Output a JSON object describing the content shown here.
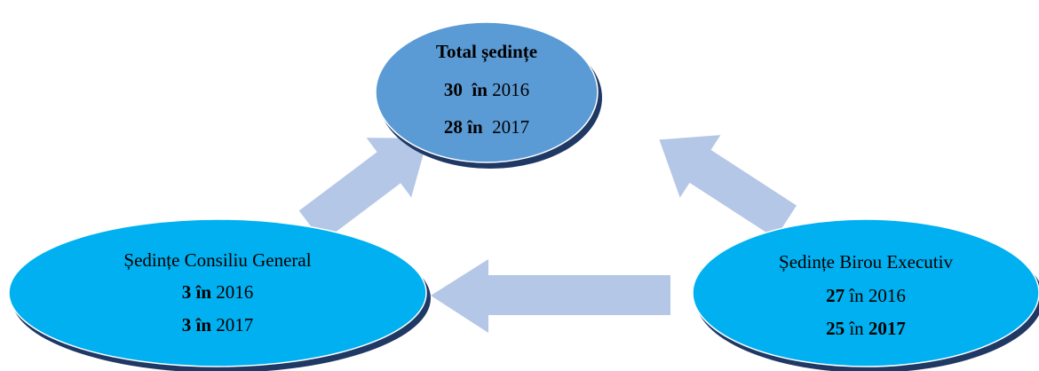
{
  "nodes": [
    {
      "lines": [
        [
          {
            "text": "Total ședințe",
            "bold": true
          }
        ],
        [
          {
            "text": "30  în",
            "bold": true
          },
          {
            "text": " 2016",
            "bold": false
          }
        ],
        [
          {
            "text": "28 în",
            "bold": true
          },
          {
            "text": "  2017",
            "bold": false
          }
        ]
      ]
    },
    {
      "lines": [
        [
          {
            "text": "Ședințe Consiliu General",
            "bold": false
          }
        ],
        [
          {
            "text": "3 în",
            "bold": true
          },
          {
            "text": " 2016",
            "bold": false
          }
        ],
        [
          {
            "text": "3 în",
            "bold": true
          },
          {
            "text": " 2017",
            "bold": false
          }
        ]
      ]
    },
    {
      "lines": [
        [
          {
            "text": "Ședințe Birou Executiv",
            "bold": false
          }
        ],
        [
          {
            "text": "27",
            "bold": true
          },
          {
            "text": " în 2016",
            "bold": false
          }
        ],
        [
          {
            "text": "25",
            "bold": true
          },
          {
            "text": " în ",
            "bold": false
          },
          {
            "text": "2017",
            "bold": true
          }
        ]
      ]
    }
  ]
}
